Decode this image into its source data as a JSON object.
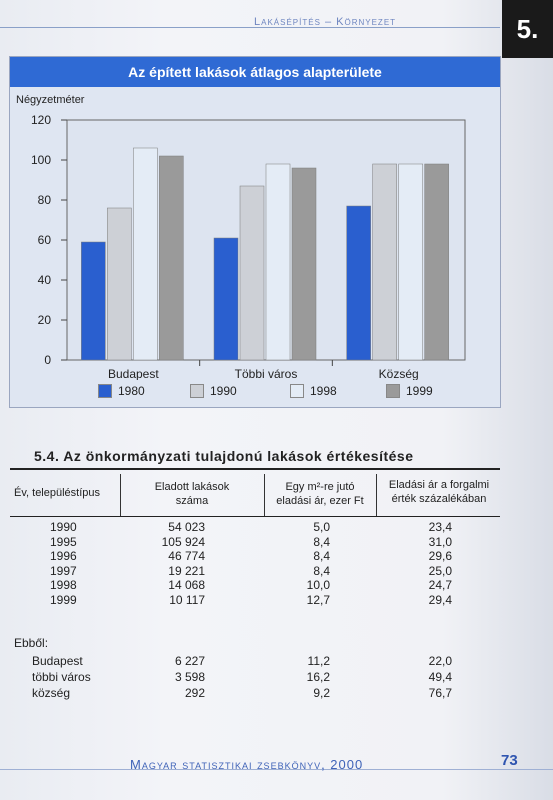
{
  "header": {
    "title": "Lakásépítés – Környezet",
    "chapter": "5."
  },
  "chart": {
    "title": "Az épített lakások átlagos alapterülete",
    "unit_label": "Négyzetméter",
    "colors": {
      "1980": "#2a5fcf",
      "1990": "#cdd0d6",
      "1998": "#e4ecf6",
      "1999": "#9a9a9a"
    }
  },
  "chart_data": {
    "type": "bar",
    "title": "Az épített lakások átlagos alapterülete",
    "ylabel": "Négyzetméter",
    "xlabel": "",
    "ylim": [
      0,
      120
    ],
    "yticks": [
      0,
      20,
      40,
      60,
      80,
      100,
      120
    ],
    "grid": false,
    "legend": "bottom",
    "categories": [
      "Budapest",
      "Többi város",
      "Község"
    ],
    "series": [
      {
        "name": "1980",
        "values": [
          59,
          61,
          77
        ]
      },
      {
        "name": "1990",
        "values": [
          76,
          87,
          98
        ]
      },
      {
        "name": "1998",
        "values": [
          106,
          98,
          98
        ]
      },
      {
        "name": "1999",
        "values": [
          102,
          96,
          98
        ]
      }
    ]
  },
  "table": {
    "title": "5.4. Az önkormányzati tulajdonú lakások értékesítése",
    "headers": {
      "col1": "Év, településtípus",
      "col2_a": "Eladott lakások",
      "col2_b": "száma",
      "col3_a": "Egy m²-re jutó",
      "col3_b": "eladási ár, ezer Ft",
      "col4_a": "Eladási ár a forgalmi",
      "col4_b": "érték százalékában"
    },
    "rows": [
      {
        "label": "1990",
        "count": "54 023",
        "price": "5,0",
        "pct": "23,4"
      },
      {
        "label": "1995",
        "count": "105 924",
        "price": "8,4",
        "pct": "31,0"
      },
      {
        "label": "1996",
        "count": "46 774",
        "price": "8,4",
        "pct": "29,6"
      },
      {
        "label": "1997",
        "count": "19 221",
        "price": "8,4",
        "pct": "25,0"
      },
      {
        "label": "1998",
        "count": "14 068",
        "price": "10,0",
        "pct": "24,7"
      },
      {
        "label": "1999",
        "count": "10 117",
        "price": "12,7",
        "pct": "29,4"
      }
    ],
    "sub_heading": "Ebből:",
    "sub_rows": [
      {
        "label": "Budapest",
        "count": "6 227",
        "price": "11,2",
        "pct": "22,0"
      },
      {
        "label": "többi város",
        "count": "3 598",
        "price": "16,2",
        "pct": "49,4"
      },
      {
        "label": "község",
        "count": "292",
        "price": "9,2",
        "pct": "76,7"
      }
    ]
  },
  "footer": {
    "title": "Magyar statisztikai zsebkönyv, 2000",
    "page": "73"
  }
}
